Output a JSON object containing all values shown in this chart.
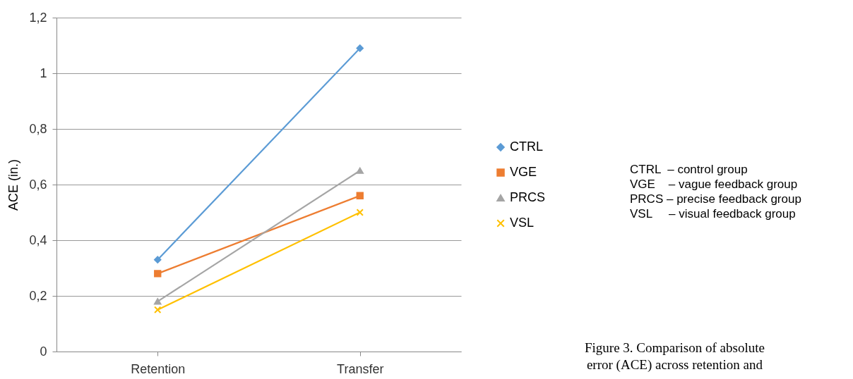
{
  "chart_data": {
    "type": "line",
    "ylabel": "ACE (in.)",
    "categories": [
      "Retention",
      "Transfer"
    ],
    "series": [
      {
        "name": "CTRL",
        "color": "#5b9bd5",
        "marker": "diamond",
        "values": [
          0.33,
          1.09
        ]
      },
      {
        "name": "VGE",
        "color": "#ed7d31",
        "marker": "square",
        "values": [
          0.28,
          0.56
        ]
      },
      {
        "name": "PRCS",
        "color": "#a5a5a5",
        "marker": "triangle",
        "values": [
          0.18,
          0.65
        ]
      },
      {
        "name": "VSL",
        "color": "#ffc000",
        "marker": "cross",
        "values": [
          0.15,
          0.5
        ]
      }
    ],
    "ylim": [
      0,
      1.2
    ],
    "yticks": [
      0,
      {
        "value": 0.2,
        "label": "0,2"
      },
      {
        "value": 0.4,
        "label": "0,4"
      },
      {
        "value": 0.6,
        "label": "0,6"
      },
      {
        "value": 0.8,
        "label": "0,8"
      },
      1,
      {
        "value": 1.2,
        "label": "1,2"
      }
    ],
    "grid": "y",
    "legend": "right",
    "annotations": [
      "CTRL  – control group",
      "VGE    – vague feedback group",
      "PRCS – precise feedback group",
      "VSL     – visual feedback group",
      "Figure 3. Comparison of absolute",
      "error (ACE) across retention and"
    ]
  }
}
